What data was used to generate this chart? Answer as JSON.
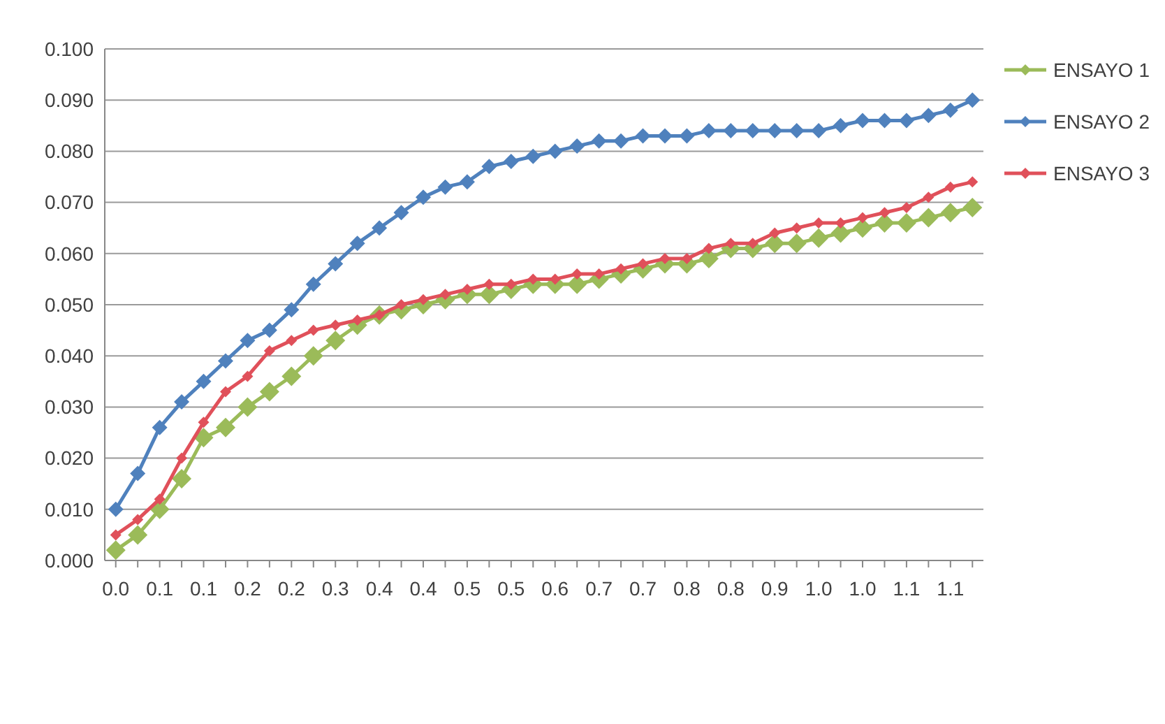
{
  "chart_data": {
    "type": "line",
    "categories": [
      "0.0",
      null,
      "0.1",
      null,
      "0.1",
      null,
      "0.2",
      null,
      "0.2",
      null,
      "0.3",
      null,
      "0.4",
      null,
      "0.4",
      null,
      "0.5",
      null,
      "0.5",
      null,
      "0.6",
      null,
      "0.7",
      null,
      "0.7",
      null,
      "0.8",
      null,
      "0.8",
      null,
      "0.9",
      null,
      "1.0",
      null,
      "1.0",
      null,
      "1.1",
      null,
      "1.1",
      null
    ],
    "series": [
      {
        "name": "ENSAYO 1",
        "color": "#9bbb59",
        "values": [
          0.002,
          0.005,
          0.01,
          0.016,
          0.024,
          0.026,
          0.03,
          0.033,
          0.036,
          0.04,
          0.043,
          0.046,
          0.048,
          0.049,
          0.05,
          0.051,
          0.052,
          0.052,
          0.053,
          0.054,
          0.054,
          0.054,
          0.055,
          0.056,
          0.057,
          0.058,
          0.058,
          0.059,
          0.061,
          0.061,
          0.062,
          0.062,
          0.063,
          0.064,
          0.065,
          0.066,
          0.066,
          0.067,
          0.068,
          0.069
        ]
      },
      {
        "name": "ENSAYO 2",
        "color": "#4f81bd",
        "values": [
          0.01,
          0.017,
          0.026,
          0.031,
          0.035,
          0.039,
          0.043,
          0.045,
          0.049,
          0.054,
          0.058,
          0.062,
          0.065,
          0.068,
          0.071,
          0.073,
          0.074,
          0.077,
          0.078,
          0.079,
          0.08,
          0.081,
          0.082,
          0.082,
          0.083,
          0.083,
          0.083,
          0.084,
          0.084,
          0.084,
          0.084,
          0.084,
          0.084,
          0.085,
          0.086,
          0.086,
          0.086,
          0.087,
          0.088,
          0.09
        ]
      },
      {
        "name": "ENSAYO 3",
        "color": "#e0505a",
        "values": [
          0.005,
          0.008,
          0.012,
          0.02,
          0.027,
          0.033,
          0.036,
          0.041,
          0.043,
          0.045,
          0.046,
          0.047,
          0.048,
          0.05,
          0.051,
          0.052,
          0.053,
          0.054,
          0.054,
          0.055,
          0.055,
          0.056,
          0.056,
          0.057,
          0.058,
          0.059,
          0.059,
          0.061,
          0.062,
          0.062,
          0.064,
          0.065,
          0.066,
          0.066,
          0.067,
          0.068,
          0.069,
          0.071,
          0.073,
          0.074
        ]
      }
    ],
    "ylim": [
      0,
      0.1
    ],
    "yticks": [
      {
        "value": 0,
        "label": "0.000"
      },
      {
        "value": 0.01,
        "label": "0.010"
      },
      {
        "value": 0.02,
        "label": "0.020"
      },
      {
        "value": 0.03,
        "label": "0.030"
      },
      {
        "value": 0.04,
        "label": "0.040"
      },
      {
        "value": 0.05,
        "label": "0.050"
      },
      {
        "value": 0.06,
        "label": "0.060"
      },
      {
        "value": 0.07,
        "label": "0.070"
      },
      {
        "value": 0.08,
        "label": "0.080"
      },
      {
        "value": 0.09,
        "label": "0.090"
      },
      {
        "value": 0.1,
        "label": "0.100"
      }
    ],
    "grid": "y",
    "legend": "right",
    "marker": "diamond",
    "line_style": "solid"
  }
}
